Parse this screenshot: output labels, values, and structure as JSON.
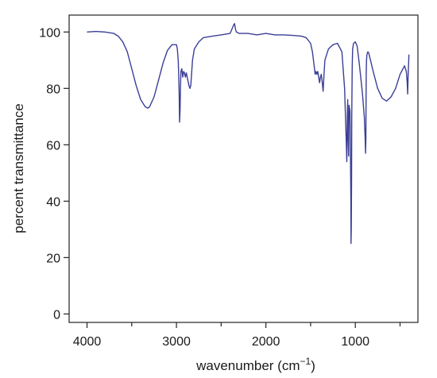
{
  "chart_data": {
    "type": "line",
    "title": "",
    "xlabel": "wavenumber (cm",
    "xlabel_superscript": "−1",
    "xlabel_suffix": ")",
    "ylabel": "percent transmittance",
    "x_reversed": true,
    "xlim": [
      4200,
      300
    ],
    "ylim": [
      -3,
      106
    ],
    "x_ticks": [
      4000,
      3000,
      2000,
      1000
    ],
    "x_tick_labels": [
      "4000",
      "3000",
      "2000",
      "1000"
    ],
    "x_minor_ticks": [
      3500,
      2500,
      1500,
      500
    ],
    "y_ticks": [
      0,
      20,
      40,
      60,
      80,
      100
    ],
    "y_tick_labels": [
      "0",
      "20",
      "40",
      "60",
      "80",
      "100"
    ],
    "grid": false,
    "line_color": "#3b3f96",
    "series": [
      {
        "x": [
          4000,
          3900,
          3800,
          3700,
          3650,
          3600,
          3550,
          3500,
          3450,
          3400,
          3350,
          3320,
          3300,
          3250,
          3200,
          3150,
          3100,
          3050,
          3000,
          2990,
          2980,
          2975,
          2970,
          2965,
          2960,
          2955,
          2950,
          2940,
          2930,
          2920,
          2910,
          2900,
          2890,
          2880,
          2870,
          2860,
          2850,
          2840,
          2820,
          2800,
          2750,
          2700,
          2600,
          2500,
          2400,
          2360,
          2350,
          2340,
          2330,
          2300,
          2200,
          2100,
          2000,
          1900,
          1800,
          1700,
          1600,
          1550,
          1500,
          1480,
          1460,
          1450,
          1440,
          1430,
          1420,
          1410,
          1400,
          1390,
          1380,
          1370,
          1360,
          1350,
          1340,
          1300,
          1250,
          1200,
          1150,
          1120,
          1100,
          1095,
          1090,
          1085,
          1080,
          1075,
          1070,
          1060,
          1055,
          1050,
          1048,
          1045,
          1042,
          1040,
          1035,
          1030,
          1020,
          1000,
          980,
          960,
          940,
          920,
          900,
          890,
          885,
          882,
          880,
          878,
          875,
          870,
          860,
          850,
          830,
          800,
          750,
          700,
          650,
          600,
          550,
          500,
          450,
          430,
          420,
          415,
          410,
          400
        ],
        "y": [
          100,
          100.2,
          100,
          99.5,
          98.5,
          96.5,
          93,
          87,
          81,
          76,
          73.5,
          73,
          73.5,
          77,
          83,
          89,
          93.5,
          95.5,
          95.5,
          94,
          90,
          85,
          78,
          68,
          72,
          80,
          86,
          87,
          84,
          86,
          85.5,
          84,
          85.5,
          84,
          82.5,
          81,
          80,
          81,
          90,
          94,
          96.5,
          98,
          98.5,
          99,
          99.5,
          102.5,
          103,
          101,
          100,
          99.5,
          99.5,
          99,
          99.5,
          99,
          99,
          98.8,
          98.5,
          98,
          96,
          93,
          88,
          85,
          86,
          85,
          86,
          84,
          82,
          84,
          85,
          82,
          79,
          85,
          90,
          94,
          95.5,
          96,
          93,
          80,
          60,
          54,
          70,
          76,
          62,
          56,
          74,
          72,
          60,
          40,
          25,
          30,
          48,
          70,
          88,
          94,
          96,
          96.5,
          95,
          90,
          84,
          78,
          70,
          62,
          57,
          62,
          75,
          85,
          90,
          92,
          93,
          92.5,
          90,
          86,
          80,
          76.5,
          75.5,
          77,
          80,
          85,
          88,
          86,
          82,
          78,
          84,
          92
        ]
      }
    ]
  }
}
